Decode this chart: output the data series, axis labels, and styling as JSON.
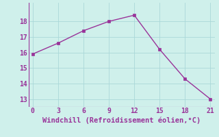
{
  "x": [
    0,
    3,
    6,
    9,
    12,
    15,
    18,
    21
  ],
  "y": [
    15.9,
    16.6,
    17.4,
    18.0,
    18.4,
    16.2,
    14.3,
    13.0
  ],
  "line_color": "#993399",
  "marker": "s",
  "marker_size": 2.5,
  "line_width": 1.0,
  "xlabel": "Windchill (Refroidissement éolien,°C)",
  "xlabel_fontsize": 7.5,
  "xlabel_color": "#993399",
  "background_color": "#cff0eb",
  "grid_color": "#aad8d8",
  "tick_color": "#993399",
  "tick_fontsize": 7,
  "xlim": [
    -0.5,
    21.5
  ],
  "ylim": [
    12.5,
    19.2
  ],
  "xticks": [
    0,
    3,
    6,
    9,
    12,
    15,
    18,
    21
  ],
  "yticks": [
    13,
    14,
    15,
    16,
    17,
    18
  ]
}
